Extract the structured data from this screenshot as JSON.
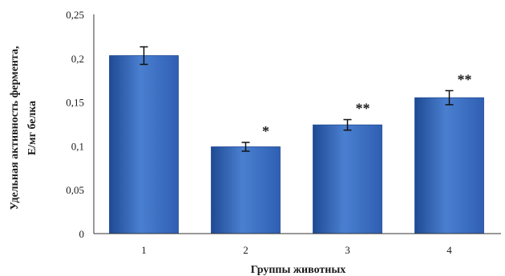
{
  "chart_data": {
    "type": "bar",
    "categories": [
      "1",
      "2",
      "3",
      "4"
    ],
    "values": [
      0.203,
      0.099,
      0.124,
      0.155
    ],
    "errors": [
      0.01,
      0.005,
      0.006,
      0.008
    ],
    "significance": [
      "",
      "*",
      "**",
      "**"
    ],
    "yticks": [
      "0",
      "0,05",
      "0,1",
      "0,15",
      "0,2",
      "0,25"
    ],
    "ylim": [
      0,
      0.25
    ],
    "xlabel": "Группы животных",
    "ylabel_line1": "Удельная активность фермента,",
    "ylabel_line2": "Е/мг белка",
    "grid": false,
    "bar_color": "#2f5fb3",
    "bar_color_light": "#4a7fd0",
    "bar_color_dark": "#1f4a94"
  }
}
